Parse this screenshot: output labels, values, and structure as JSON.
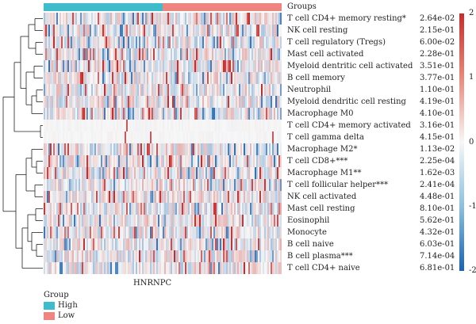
{
  "chart_data": {
    "type": "heatmap",
    "gene": "HNRNPC",
    "annotation_title": "Groups",
    "groups": [
      {
        "name": "High",
        "color": "#3fbccc"
      },
      {
        "name": "Low",
        "color": "#ef8580"
      }
    ],
    "rows": [
      {
        "label": "T cell CD4+ memory resting*",
        "pvalue": "2.64e-02"
      },
      {
        "label": "NK cell resting",
        "pvalue": "2.15e-01"
      },
      {
        "label": "T cell regulatory (Tregs)",
        "pvalue": "6.00e-02"
      },
      {
        "label": "Mast cell activated",
        "pvalue": "2.28e-01"
      },
      {
        "label": "Myeloid dentritic cell activated",
        "pvalue": "3.51e-01"
      },
      {
        "label": "B cell memory",
        "pvalue": "3.77e-01"
      },
      {
        "label": "Neutrophil",
        "pvalue": "1.10e-01"
      },
      {
        "label": "Myeloid dendritic cell resting",
        "pvalue": "4.19e-01"
      },
      {
        "label": "Macrophage M0",
        "pvalue": "4.10e-01"
      },
      {
        "label": "T cell CD4+ memory activated",
        "pvalue": "3.16e-01"
      },
      {
        "label": "T cell gamma delta",
        "pvalue": "4.15e-01"
      },
      {
        "label": "Macrophage M2*",
        "pvalue": "1.13e-02"
      },
      {
        "label": "T cell CD8+***",
        "pvalue": "2.25e-04"
      },
      {
        "label": "Macrophage M1**",
        "pvalue": "1.62e-03"
      },
      {
        "label": "T cell follicular helper***",
        "pvalue": "2.41e-04"
      },
      {
        "label": "NK cell activated",
        "pvalue": "4.48e-01"
      },
      {
        "label": "Mast cell resting",
        "pvalue": "8.10e-01"
      },
      {
        "label": "Eosinophil",
        "pvalue": "5.62e-01"
      },
      {
        "label": "Monocyte",
        "pvalue": "4.32e-01"
      },
      {
        "label": "B cell naive",
        "pvalue": "6.03e-01"
      },
      {
        "label": "B cell plasma***",
        "pvalue": "7.14e-04"
      },
      {
        "label": "T cell CD4+ naive",
        "pvalue": "6.81e-01"
      }
    ],
    "color_scale": {
      "min": -2,
      "max": 2,
      "ticks": [
        "2",
        "1",
        "0",
        "-1",
        "-2"
      ],
      "colors": {
        "high": "#c62d2d",
        "mid": "#f7f7f7",
        "low": "#1a63b0"
      }
    },
    "legend": {
      "title": "Group",
      "items": [
        "High",
        "Low"
      ],
      "placement": "bottom-left"
    }
  }
}
